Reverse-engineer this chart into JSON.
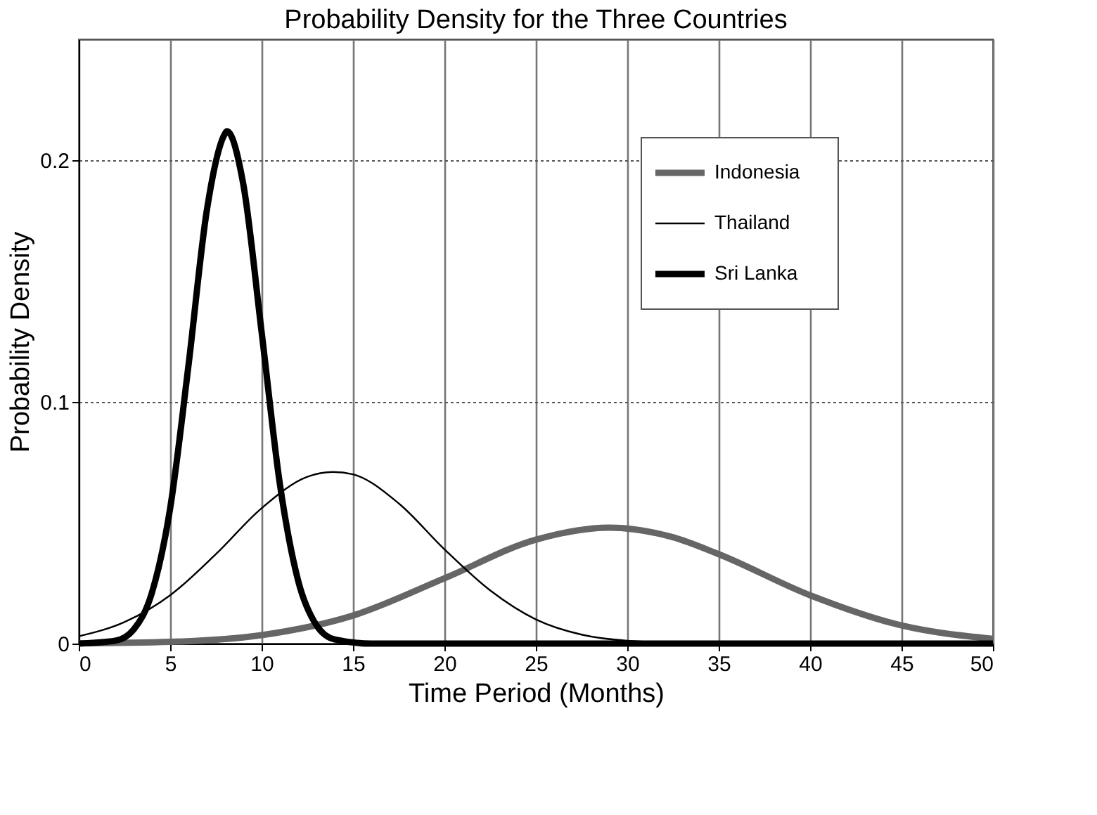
{
  "chart_data": {
    "type": "line",
    "title": "Probability Density for the Three Countries",
    "xlabel": "Time Period (Months)",
    "ylabel": "Probability Density",
    "xlim": [
      0,
      50
    ],
    "xticks": [
      0,
      5,
      10,
      15,
      20,
      25,
      30,
      35,
      40,
      45,
      50
    ],
    "ylim": [
      0,
      0.25
    ],
    "yticks": [
      0,
      0.1,
      0.2
    ],
    "grid": true,
    "legend": "top right",
    "marker": "none",
    "line_style": "solid",
    "series": [
      {
        "name": "Indonesia",
        "color": "#666666",
        "x": [
          0,
          5,
          10,
          15,
          20,
          25,
          29,
          32.5,
          35,
          40,
          45,
          50
        ],
        "values": [
          0.0001,
          0.0007,
          0.0035,
          0.0116,
          0.027,
          0.043,
          0.048,
          0.044,
          0.037,
          0.02,
          0.0075,
          0.002
        ]
      },
      {
        "name": "Thailand",
        "color": "#000000",
        "x": [
          0,
          2.5,
          5,
          7.5,
          10,
          12.5,
          13.9,
          15,
          17.5,
          20,
          22.5,
          25,
          27.5,
          30,
          35,
          50
        ],
        "values": [
          0.003,
          0.0089,
          0.02,
          0.037,
          0.056,
          0.069,
          0.071,
          0.07,
          0.058,
          0.039,
          0.022,
          0.01,
          0.0037,
          0.0012,
          0,
          0
        ]
      },
      {
        "name": "Sri Lanka",
        "color": "#000000",
        "x": [
          0,
          2,
          3,
          4,
          5,
          6,
          7,
          8,
          8.1,
          9,
          10,
          11,
          12,
          13,
          14,
          16,
          50
        ],
        "values": [
          0,
          0.0012,
          0.0058,
          0.021,
          0.056,
          0.115,
          0.179,
          0.211,
          0.212,
          0.19,
          0.129,
          0.066,
          0.026,
          0.0076,
          0.0017,
          0,
          0
        ]
      }
    ]
  }
}
